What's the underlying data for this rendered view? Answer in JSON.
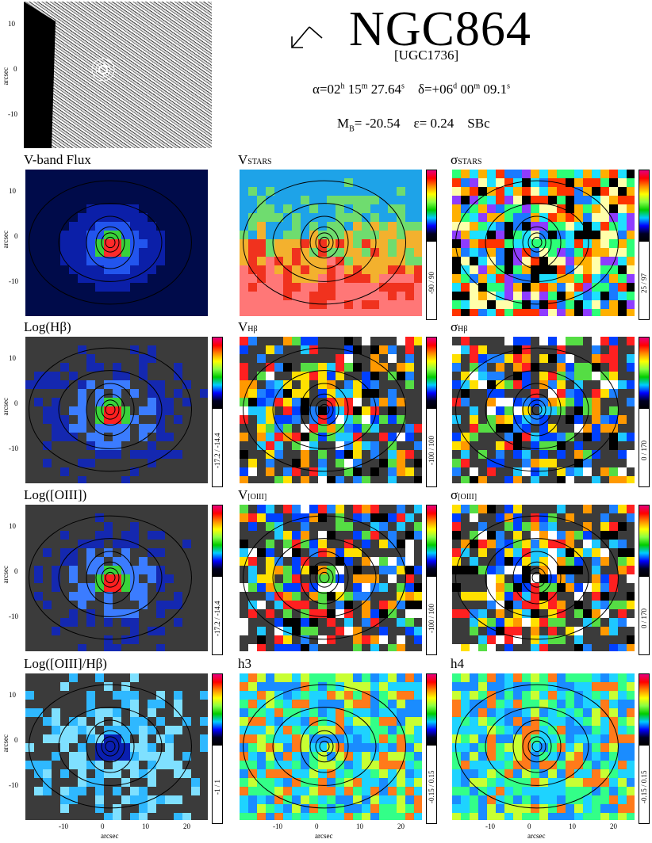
{
  "header": {
    "galaxy": "NGC864",
    "alias": "[UGC1736]",
    "ra": {
      "alpha": "α=02",
      "h": "h",
      "m_val": " 15",
      "m": "m",
      "s_val": " 27.64",
      "s": "s"
    },
    "dec": {
      "delta": "δ=+06",
      "d": "d",
      "m_val": " 00",
      "m": "m",
      "s_val": " 09.1",
      "s": "s"
    },
    "mag": {
      "m": "M",
      "b": "B",
      "val": "= -20.54"
    },
    "ellip": "ε= 0.24",
    "type": "SBc"
  },
  "thumbnail": {
    "ylabel": "arcsec",
    "yticks": [
      "10",
      "0",
      "-10"
    ]
  },
  "axes": {
    "yticks": [
      "10",
      "0",
      "-10"
    ],
    "ylabel": "arcsec",
    "xticks": [
      "-10",
      "0",
      "10",
      "20"
    ],
    "xlabel": "arcsec"
  },
  "panels": [
    {
      "title": "V-band Flux",
      "scale": ""
    },
    {
      "title_main": "V",
      "title_sub": "STARS",
      "scale": "-90 / 90"
    },
    {
      "title_main": "σ",
      "title_sub": "STARS",
      "scale": "25 / 97"
    },
    {
      "title": "Log(Hβ)",
      "scale": "-17.2 / -14.4"
    },
    {
      "title_main": "V",
      "title_sub": "Hβ",
      "scale": "-100 / 100"
    },
    {
      "title_main": "σ",
      "title_sub": "Hβ",
      "scale": "0 / 170"
    },
    {
      "title": "Log([OIII])",
      "scale": "-17.2 / -14.4"
    },
    {
      "title_main": "V",
      "title_sub": "[OIII]",
      "scale": "-100 / 100"
    },
    {
      "title_main": "σ",
      "title_sub": "[OIII]",
      "scale": "0 / 170"
    },
    {
      "title": "Log([OIII]/Hβ)",
      "scale": "-1 / 1"
    },
    {
      "title": "h3",
      "scale": "-0.15 / 0.15"
    },
    {
      "title": "h4",
      "scale": "-0.15 / 0.15"
    }
  ],
  "colors": {
    "noise": "#3b3b3b",
    "contour": "#000000"
  }
}
